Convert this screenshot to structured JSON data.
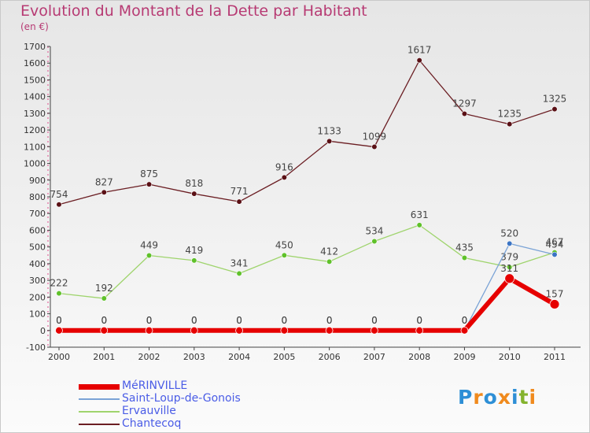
{
  "title": "Evolution du Montant de la Dette par Habitant",
  "subtitle": "(en €)",
  "logo": {
    "text": "Proxiti",
    "colors": [
      "#2e8fd6",
      "#f08a1d",
      "#2e8fd6",
      "#f08a1d",
      "#2e8fd6",
      "#84b32e",
      "#f08a1d"
    ]
  },
  "chart_data": {
    "type": "line",
    "x": [
      "2000",
      "2001",
      "2002",
      "2003",
      "2004",
      "2005",
      "2006",
      "2007",
      "2008",
      "2009",
      "2010",
      "2011"
    ],
    "ylim": [
      -100,
      1700
    ],
    "yticks": [
      -100,
      0,
      100,
      200,
      300,
      400,
      500,
      600,
      700,
      800,
      900,
      1000,
      1100,
      1200,
      1300,
      1400,
      1500,
      1600,
      1700
    ],
    "grid": false,
    "legend_position": "bottom-left",
    "series": [
      {
        "name": "Chantecoq",
        "color": "#6b1e23",
        "dot": "#5a1015",
        "values": [
          754,
          827,
          875,
          818,
          771,
          916,
          1133,
          1099,
          1617,
          1297,
          1235,
          1325
        ],
        "labels": [
          "754",
          "827",
          "875",
          "818",
          "771",
          "916",
          "1133",
          "1099",
          "1617",
          "1297",
          "1235",
          "1325"
        ]
      },
      {
        "name": "Ervauville",
        "color": "#9fd46d",
        "dot": "#5fc12a",
        "values": [
          222,
          192,
          449,
          419,
          341,
          450,
          412,
          534,
          631,
          435,
          379,
          467
        ],
        "labels": [
          "222",
          "192",
          "449",
          "419",
          "341",
          "450",
          "412",
          "534",
          "631",
          "435",
          "379",
          "467"
        ]
      },
      {
        "name": "Saint-Loup-de-Gonois",
        "color": "#7aa3d6",
        "dot": "#3b74c4",
        "values": [
          0,
          0,
          0,
          0,
          0,
          0,
          0,
          0,
          0,
          0,
          520,
          454
        ],
        "labels": [
          "0",
          "0",
          "0",
          "0",
          "0",
          "0",
          "0",
          "0",
          "0",
          "0",
          "520",
          "454"
        ]
      },
      {
        "name": "MéRINVILLE",
        "color": "#e60000",
        "dot": "#e60000",
        "values": [
          0,
          0,
          0,
          0,
          0,
          0,
          0,
          0,
          0,
          0,
          311,
          157
        ],
        "labels": [
          "0",
          "0",
          "0",
          "0",
          "0",
          "0",
          "0",
          "0",
          "0",
          "0",
          "311",
          "157"
        ]
      }
    ],
    "legend": [
      "MéRINVILLE",
      "Saint-Loup-de-Gonois",
      "Ervauville",
      "Chantecoq"
    ]
  }
}
